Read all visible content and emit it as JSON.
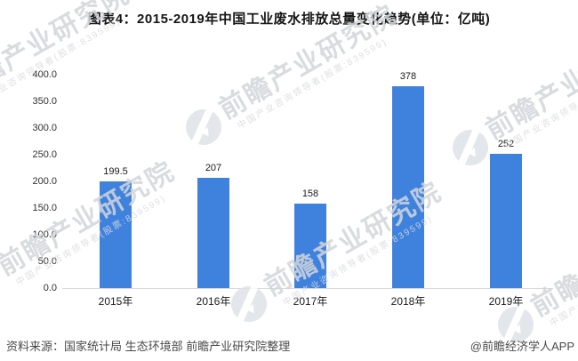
{
  "title": "图表4：2015-2019年中国工业废水排放总量变化趋势(单位：亿吨)",
  "chart_data": {
    "type": "bar",
    "categories": [
      "2015年",
      "2016年",
      "2017年",
      "2018年",
      "2019年"
    ],
    "values": [
      199.5,
      207,
      158,
      378,
      252
    ],
    "value_labels": [
      "199.5",
      "207",
      "158",
      "378",
      "252"
    ],
    "title": "图表4：2015-2019年中国工业废水排放总量变化趋势(单位：亿吨)",
    "xlabel": "",
    "ylabel": "",
    "ylim": [
      0,
      400
    ],
    "ytick_step": 50,
    "grid": false,
    "legend": false,
    "bar_color": "#3f82de"
  },
  "y_axis": {
    "ticks": [
      "400.0",
      "350.0",
      "300.0",
      "250.0",
      "200.0",
      "150.0",
      "100.0",
      "50.0",
      "0.0"
    ]
  },
  "footer": {
    "source": "资料来源：国家统计局 生态环境部 前瞻产业研究院整理",
    "credit": "@前瞻经济学人APP"
  },
  "watermark": {
    "brand": "前瞻产业研究院",
    "subtitle": "中国产业咨询领导者(股票:839599)",
    "logo": "qianzhan-globe-icon"
  },
  "colors": {
    "bar": "#3f82de",
    "axis_line": "#d9d9d9",
    "title_text": "#151515",
    "tick_text": "#303030",
    "footer_text": "#4a4a4a",
    "watermark_text": "#d3d6da"
  }
}
